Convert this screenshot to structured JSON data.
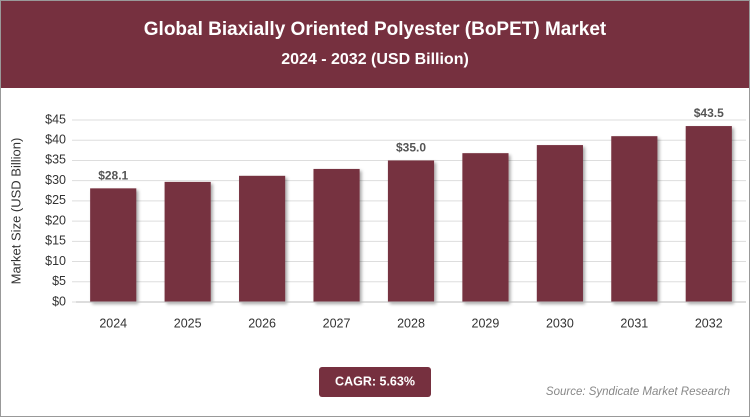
{
  "chart_data": {
    "type": "bar",
    "title": "Global Biaxially Oriented Polyester (BoPET) Market",
    "subtitle": "2024 - 2032 (USD Billion)",
    "y_label": "Market Size (USD Billion)",
    "categories": [
      "2024",
      "2025",
      "2026",
      "2027",
      "2028",
      "2029",
      "2030",
      "2031",
      "2032"
    ],
    "values": [
      28.1,
      29.7,
      31.2,
      32.9,
      35.0,
      36.8,
      38.8,
      41.0,
      43.5
    ],
    "value_labels": [
      "$28.1",
      null,
      null,
      null,
      "$35.0",
      null,
      null,
      null,
      "$43.5"
    ],
    "color": "#76303f",
    "ylim": [
      0,
      45
    ],
    "yticks": [
      {
        "value": 0,
        "label": "$0"
      },
      {
        "value": 5,
        "label": "$5"
      },
      {
        "value": 10,
        "label": "$10"
      },
      {
        "value": 15,
        "label": "$15"
      },
      {
        "value": 20,
        "label": "$20"
      },
      {
        "value": 25,
        "label": "$25"
      },
      {
        "value": 30,
        "label": "$30"
      },
      {
        "value": 35,
        "label": "$35"
      },
      {
        "value": 40,
        "label": "$40"
      },
      {
        "value": 45,
        "label": "$45"
      }
    ],
    "grid": true,
    "cagr_label": "CAGR: 5.63%",
    "source": "Source: Syndicate Market Research"
  }
}
